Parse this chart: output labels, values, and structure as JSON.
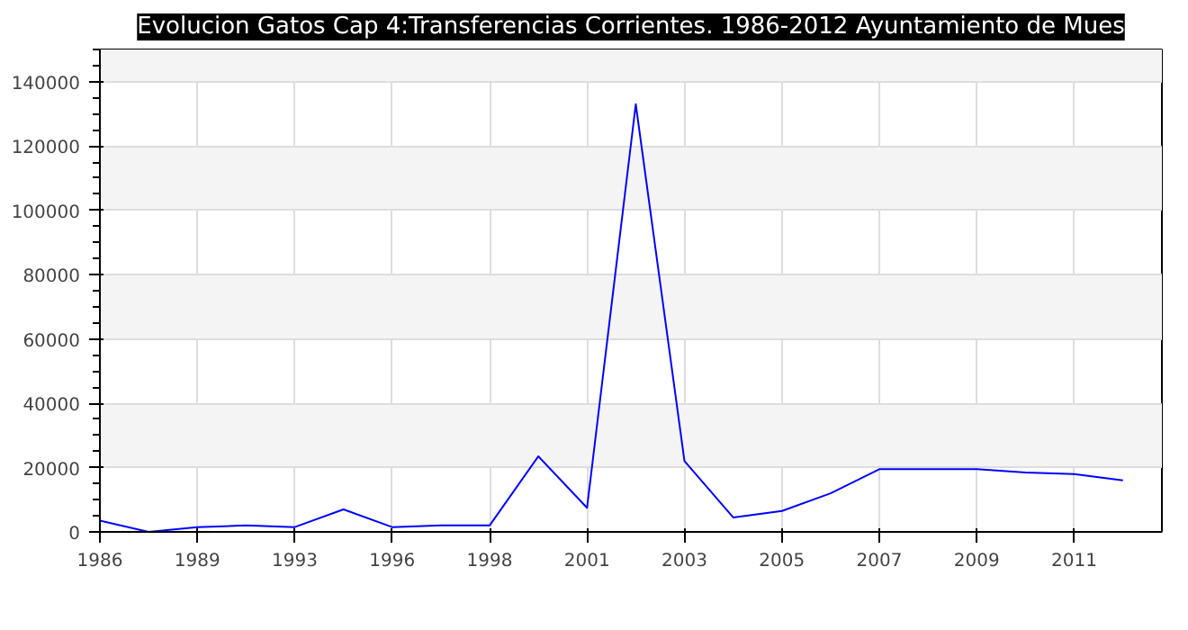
{
  "chart_data": {
    "type": "line",
    "title": "Evolucion Gatos Cap 4:Transferencias Corrientes. 1986-2012 Ayuntamiento de Mues",
    "categories": [
      "1986",
      null,
      "1989",
      null,
      "1993",
      null,
      "1996",
      null,
      "1998",
      null,
      "2001",
      null,
      "2003",
      null,
      "2005",
      null,
      "2007",
      null,
      "2009",
      null,
      "2011",
      null
    ],
    "series": [
      {
        "color": "#0000ff",
        "values": [
          3500,
          0,
          1500,
          2000,
          1500,
          7000,
          1500,
          2000,
          2000,
          23500,
          7500,
          133000,
          22000,
          4500,
          6500,
          12000,
          19500,
          19500,
          19500,
          18500,
          18000,
          16000
        ]
      }
    ],
    "ylim": [
      0,
      150000
    ],
    "yticks": [
      0,
      20000,
      40000,
      60000,
      80000,
      100000,
      120000,
      140000
    ],
    "grid": true,
    "marker": "none",
    "line_style": "solid"
  }
}
